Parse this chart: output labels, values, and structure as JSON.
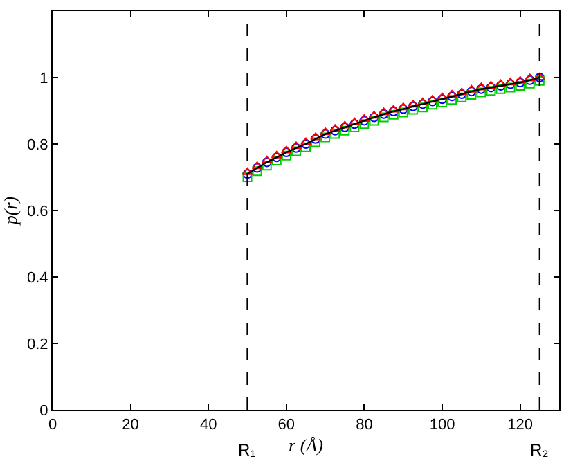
{
  "chart_data": {
    "type": "line",
    "xlabel": "r (Å)",
    "ylabel": "p(r)",
    "x": [
      50,
      52.5,
      55,
      57.5,
      60,
      62.5,
      65,
      67.5,
      70,
      72.5,
      75,
      77.5,
      80,
      82.5,
      85,
      87.5,
      90,
      92.5,
      95,
      97.5,
      100,
      102.5,
      105,
      107.5,
      110,
      112.5,
      115,
      117.5,
      120,
      122.5,
      125
    ],
    "series": [
      {
        "type": "scatter",
        "marker": "circle",
        "color": "#0000ff",
        "values": [
          0.71,
          0.728,
          0.745,
          0.76,
          0.775,
          0.788,
          0.8,
          0.815,
          0.83,
          0.84,
          0.85,
          0.86,
          0.87,
          0.88,
          0.89,
          0.898,
          0.905,
          0.913,
          0.92,
          0.928,
          0.935,
          0.943,
          0.95,
          0.958,
          0.965,
          0.97,
          0.975,
          0.98,
          0.985,
          0.992,
          1.0
        ]
      },
      {
        "type": "scatter",
        "marker": "square",
        "color": "#00cc00",
        "values": [
          0.7,
          0.718,
          0.735,
          0.75,
          0.765,
          0.778,
          0.79,
          0.805,
          0.82,
          0.83,
          0.84,
          0.85,
          0.86,
          0.87,
          0.88,
          0.888,
          0.895,
          0.903,
          0.91,
          0.918,
          0.925,
          0.933,
          0.94,
          0.948,
          0.955,
          0.96,
          0.965,
          0.97,
          0.975,
          0.982,
          0.99
        ]
      },
      {
        "type": "scatter",
        "marker": "triangle",
        "color": "#ff0000",
        "values": [
          0.715,
          0.733,
          0.75,
          0.765,
          0.78,
          0.793,
          0.805,
          0.82,
          0.835,
          0.845,
          0.855,
          0.865,
          0.875,
          0.885,
          0.895,
          0.903,
          0.91,
          0.918,
          0.925,
          0.933,
          0.94,
          0.948,
          0.955,
          0.963,
          0.97,
          0.975,
          0.98,
          0.985,
          0.99,
          0.997,
          1.0
        ]
      },
      {
        "marker": "none",
        "color": "#000000",
        "values": [
          0.71,
          0.728,
          0.745,
          0.76,
          0.775,
          0.788,
          0.8,
          0.815,
          0.83,
          0.84,
          0.85,
          0.86,
          0.87,
          0.88,
          0.89,
          0.898,
          0.905,
          0.913,
          0.92,
          0.928,
          0.935,
          0.943,
          0.95,
          0.958,
          0.965,
          0.97,
          0.975,
          0.98,
          0.985,
          0.992,
          1.0
        ]
      }
    ],
    "xlim": [
      0,
      130
    ],
    "xticks": [
      0,
      20,
      40,
      60,
      80,
      100,
      120
    ],
    "ylim": [
      0,
      1.2
    ],
    "yticks": [
      0,
      0.2,
      0.4,
      0.6,
      0.8,
      1
    ],
    "ref_lines": [
      {
        "axis": "x",
        "value": 50,
        "label": "R₁",
        "color": "#000000",
        "line_style": "dashed"
      },
      {
        "axis": "x",
        "value": 125,
        "label": "R₂",
        "color": "#000000",
        "line_style": "dashed"
      }
    ],
    "grid": false
  }
}
